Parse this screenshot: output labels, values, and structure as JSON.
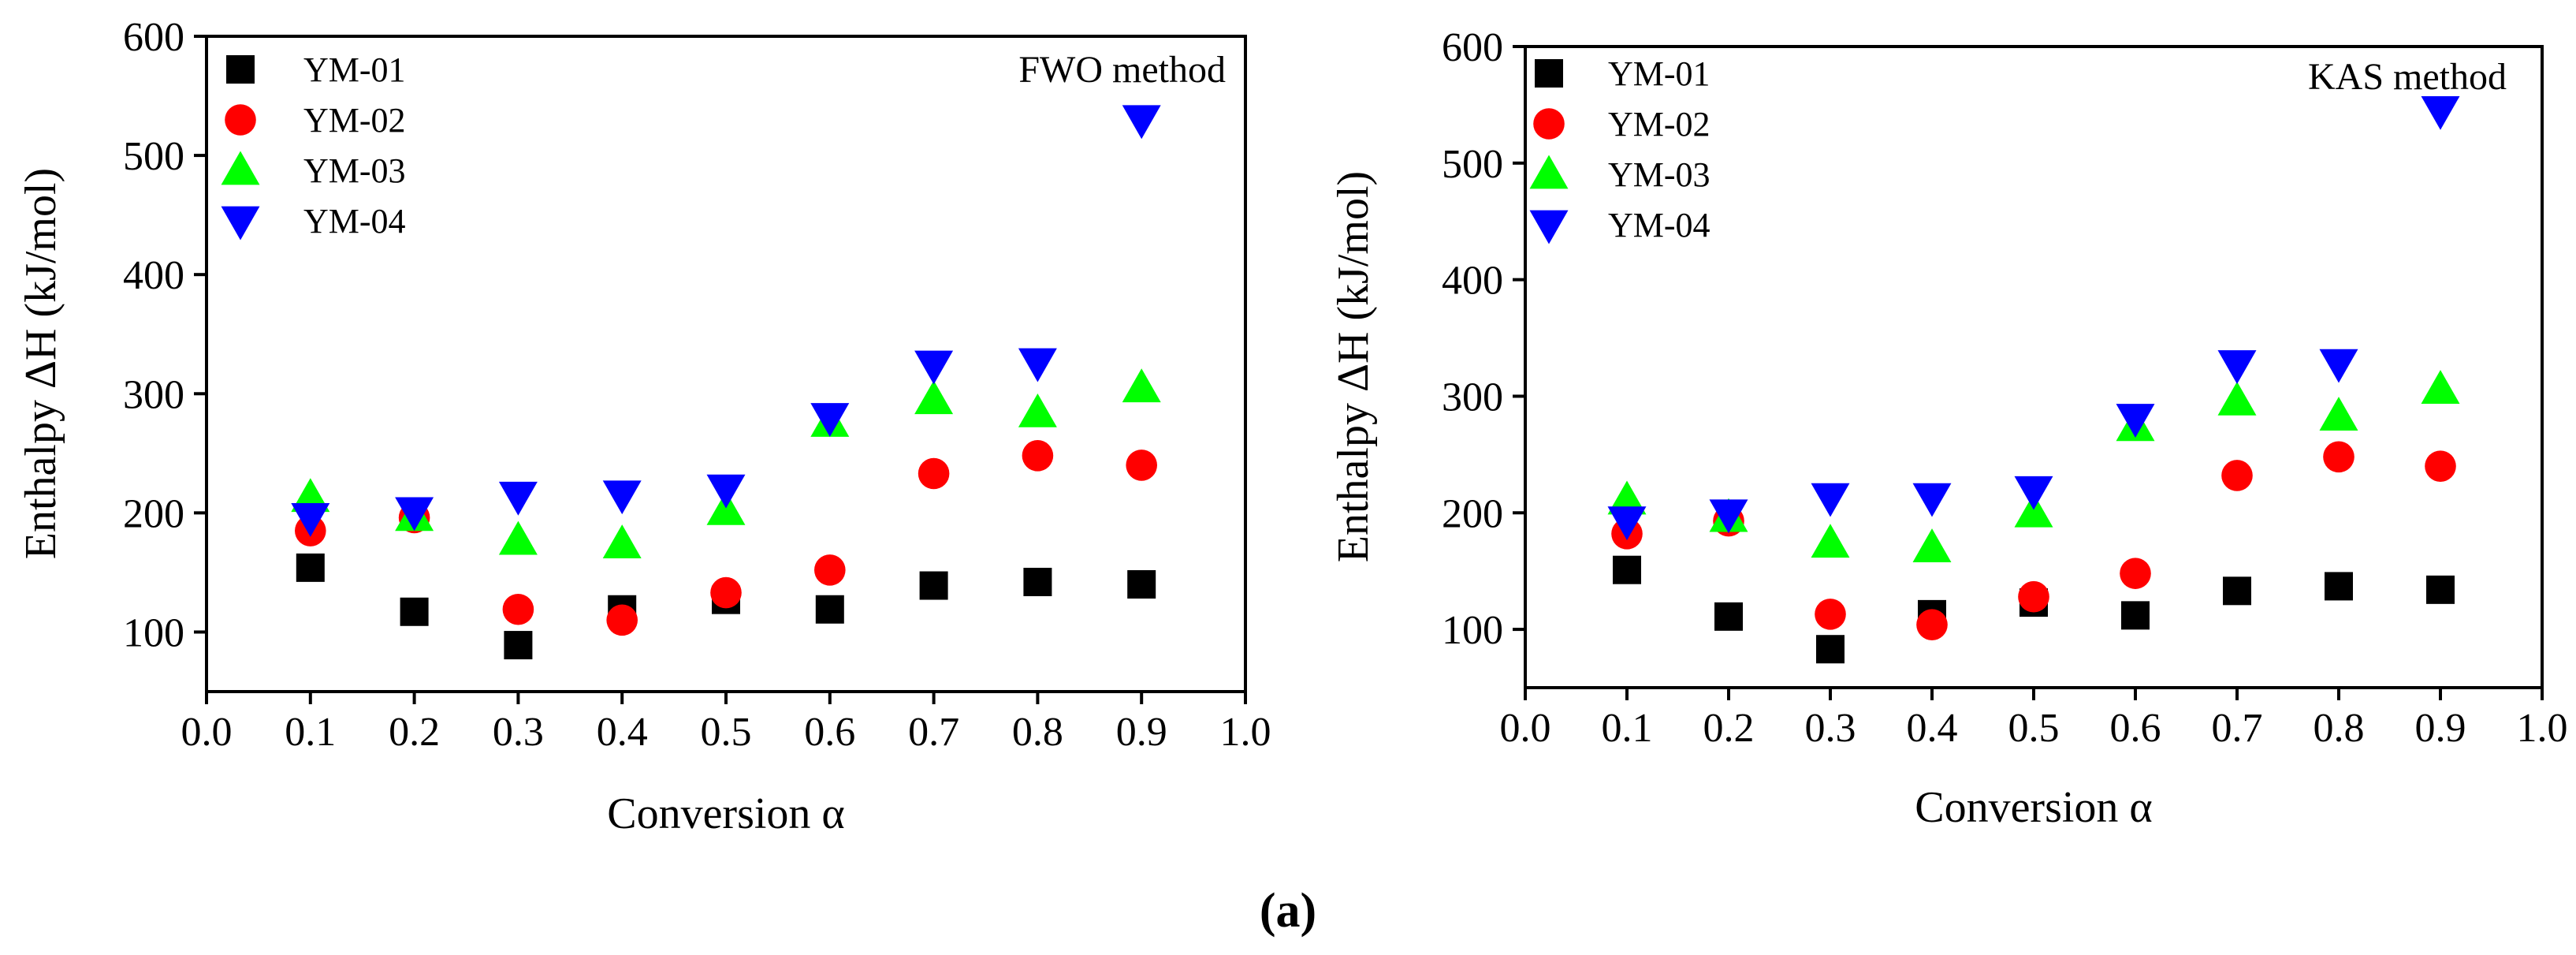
{
  "figure": {
    "panel_label": "(a)"
  },
  "colors": {
    "YM-01": "#000000",
    "YM-02": "#ff0000",
    "YM-03": "#00ff00",
    "YM-04": "#0000ff"
  },
  "chart_data": [
    {
      "type": "scatter",
      "title": "FWO method",
      "xlabel": "Conversion α",
      "ylabel": "Enthalpy ΔH (kJ/mol)",
      "xlim": [
        0.0,
        1.0
      ],
      "ylim": [
        50,
        600
      ],
      "xticks": [
        "0.0",
        "0.1",
        "0.2",
        "0.3",
        "0.4",
        "0.5",
        "0.6",
        "0.7",
        "0.8",
        "0.9",
        "1.0"
      ],
      "yticks": [
        "100",
        "200",
        "300",
        "400",
        "500",
        "600"
      ],
      "x": [
        0.1,
        0.2,
        0.3,
        0.4,
        0.5,
        0.6,
        0.7,
        0.8,
        0.9
      ],
      "legend": [
        "YM-01",
        "YM-02",
        "YM-03",
        "YM-04"
      ],
      "series": [
        {
          "name": "YM-01",
          "marker": "square",
          "values": [
            154,
            117,
            89,
            119,
            127,
            119,
            139,
            142,
            140
          ]
        },
        {
          "name": "YM-02",
          "marker": "circle",
          "values": [
            185,
            196,
            119,
            110,
            133,
            152,
            233,
            248,
            240
          ]
        },
        {
          "name": "YM-03",
          "marker": "triangle-up",
          "values": [
            213,
            197,
            177,
            174,
            202,
            276,
            295,
            284,
            305
          ]
        },
        {
          "name": "YM-04",
          "marker": "triangle-down",
          "values": [
            196,
            201,
            214,
            215,
            220,
            280,
            324,
            326,
            530
          ]
        }
      ]
    },
    {
      "type": "scatter",
      "title": "KAS method",
      "xlabel": "Conversion α",
      "ylabel": "Enthalpy ΔH (kJ/mol)",
      "xlim": [
        0.0,
        1.0
      ],
      "ylim": [
        50,
        600
      ],
      "xticks": [
        "0.0",
        "0.1",
        "0.2",
        "0.3",
        "0.4",
        "0.5",
        "0.6",
        "0.7",
        "0.8",
        "0.9",
        "1.0"
      ],
      "yticks": [
        "100",
        "200",
        "300",
        "400",
        "500",
        "600"
      ],
      "x": [
        0.1,
        0.2,
        0.3,
        0.4,
        0.5,
        0.6,
        0.7,
        0.8,
        0.9
      ],
      "legend": [
        "YM-01",
        "YM-02",
        "YM-03",
        "YM-04"
      ],
      "series": [
        {
          "name": "YM-01",
          "marker": "square",
          "values": [
            151,
            111,
            83,
            113,
            123,
            112,
            133,
            137,
            134
          ]
        },
        {
          "name": "YM-02",
          "marker": "circle",
          "values": [
            182,
            193,
            113,
            104,
            128,
            148,
            232,
            248,
            240
          ]
        },
        {
          "name": "YM-03",
          "marker": "triangle-up",
          "values": [
            211,
            196,
            174,
            170,
            200,
            274,
            296,
            283,
            306
          ]
        },
        {
          "name": "YM-04",
          "marker": "triangle-down",
          "values": [
            193,
            199,
            213,
            213,
            219,
            281,
            327,
            328,
            545
          ]
        }
      ]
    }
  ]
}
